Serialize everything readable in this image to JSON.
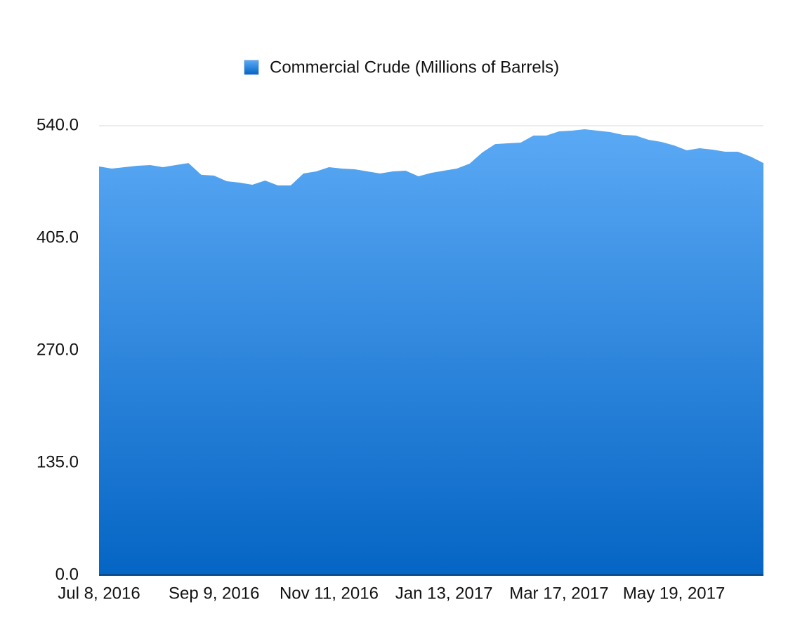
{
  "chart_data": {
    "type": "area",
    "categories": [
      "Jul 8, 2016",
      null,
      null,
      null,
      null,
      null,
      null,
      null,
      null,
      "Sep 9, 2016",
      null,
      null,
      null,
      null,
      null,
      null,
      null,
      null,
      "Nov 11, 2016",
      null,
      null,
      null,
      null,
      null,
      null,
      null,
      null,
      "Jan 13, 2017",
      null,
      null,
      null,
      null,
      null,
      null,
      null,
      null,
      "Mar 17, 2017",
      null,
      null,
      null,
      null,
      null,
      null,
      null,
      null,
      "May 19, 2017",
      null,
      null,
      null,
      null,
      null,
      null,
      null
    ],
    "series": [
      {
        "name": "Commercial Crude (Millions of Barrels)",
        "color": "#3a8ee8",
        "values": [
          491.1,
          488.5,
          490.2,
          491.9,
          492.7,
          490.2,
          492.7,
          495.2,
          481.0,
          480.1,
          473.3,
          471.7,
          469.1,
          474.2,
          468.3,
          468.3,
          482.6,
          485.2,
          490.2,
          488.5,
          487.7,
          485.2,
          482.6,
          485.2,
          486.0,
          479.2,
          483.4,
          486.0,
          488.5,
          494.4,
          507.9,
          518.0,
          518.9,
          519.7,
          528.2,
          528.2,
          533.2,
          534.1,
          535.8,
          534.1,
          532.4,
          529.0,
          528.2,
          523.1,
          520.6,
          516.4,
          510.5,
          513.0,
          511.3,
          508.8,
          508.8,
          502.9,
          495.2
        ]
      }
    ],
    "ylim": [
      0,
      540
    ],
    "yticks": [
      {
        "value": 0,
        "label": "0.0"
      },
      {
        "value": 135,
        "label": "135.0"
      },
      {
        "value": 270,
        "label": "270.0"
      },
      {
        "value": 405,
        "label": "405.0"
      },
      {
        "value": 540,
        "label": "540.0"
      }
    ],
    "grid": true
  }
}
